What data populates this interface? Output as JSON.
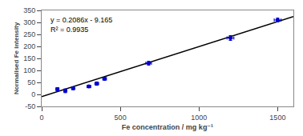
{
  "chart_data": {
    "type": "scatter",
    "xlabel": "Fe concentration / mg kg⁻¹",
    "ylabel": "Normalised Fe intensity",
    "annotations": [
      "y = 0.2086x - 9.165",
      "R² = 0.9935"
    ],
    "series": [
      {
        "type": "scatter",
        "marker": "circle",
        "color": "#0000CC",
        "x": [
          100,
          150,
          200,
          300,
          350,
          400,
          680,
          1200,
          1500
        ],
        "values": [
          22,
          15,
          25,
          33,
          45,
          65,
          130,
          235,
          310
        ],
        "x_err": [
          10,
          10,
          10,
          12,
          12,
          12,
          18,
          22,
          22
        ],
        "y_err": [
          6,
          8,
          4,
          5,
          7,
          6,
          8,
          10,
          8
        ]
      },
      {
        "type": "line",
        "line_style": "solid",
        "color": "#000000",
        "x": [
          0,
          1600
        ],
        "values": [
          -9.165,
          324.595
        ]
      }
    ],
    "xlim": [
      0,
      1600
    ],
    "ylim": [
      -50,
      350
    ],
    "xticks": [
      0,
      500,
      1000,
      1500
    ],
    "yticks": [
      -50,
      0,
      50,
      100,
      150,
      200,
      250,
      300,
      350
    ],
    "grid": false
  }
}
